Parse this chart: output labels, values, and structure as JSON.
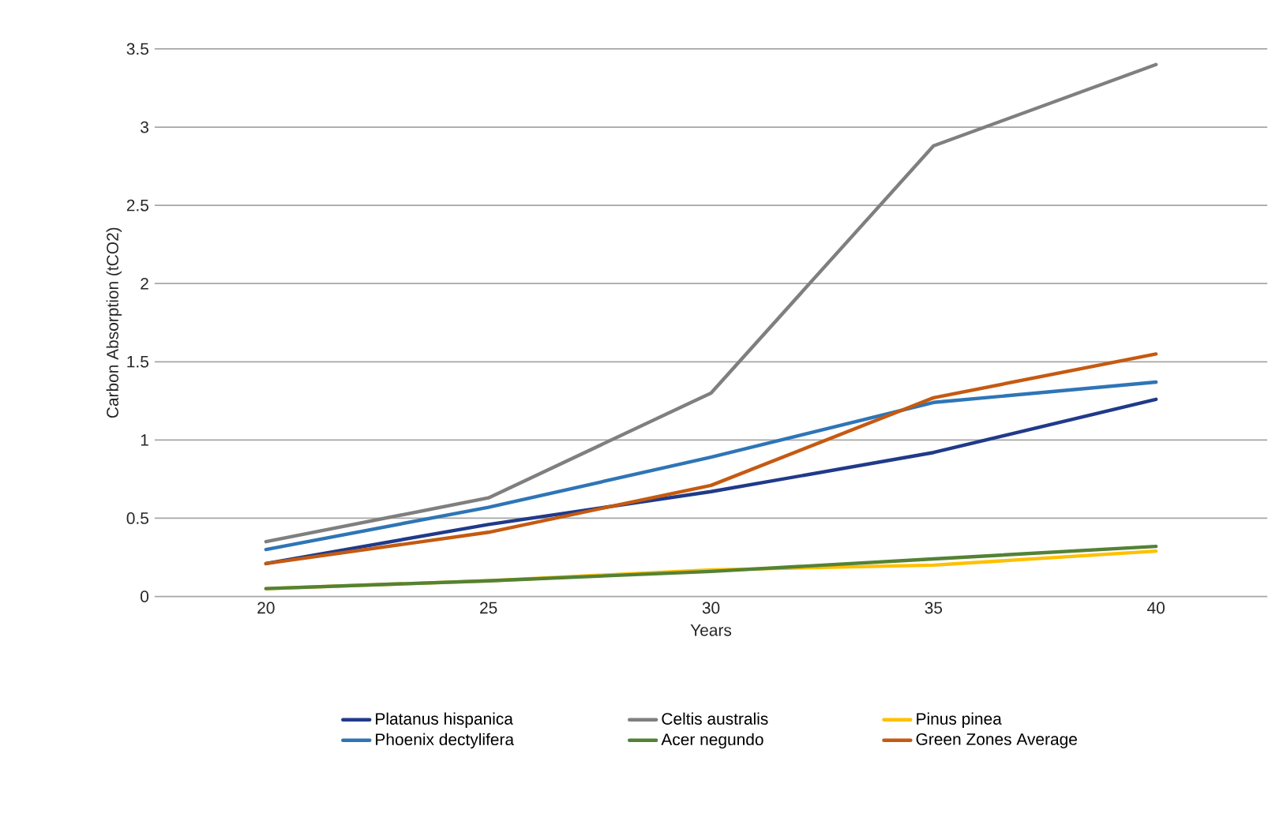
{
  "chart_data": {
    "type": "line",
    "xlabel": "Years",
    "ylabel": "Carbon Absorption (tCO2)",
    "categories": [
      "20",
      "25",
      "30",
      "35",
      "40"
    ],
    "ylim": [
      0,
      3.5
    ],
    "yticks": [
      0,
      0.5,
      1,
      1.5,
      2,
      2.5,
      3,
      3.5
    ],
    "grid": "y",
    "legend": "bottom",
    "marker": "none",
    "line_style": "solid",
    "series": [
      {
        "name": "Platanus hispanica",
        "color": "#203a8a",
        "values": [
          0.21,
          0.46,
          0.67,
          0.92,
          1.26
        ]
      },
      {
        "name": "Celtis australis",
        "color": "#7f7f7f",
        "values": [
          0.35,
          0.63,
          1.3,
          2.88,
          3.4
        ]
      },
      {
        "name": "Pinus pinea",
        "color": "#ffc000",
        "values": [
          0.05,
          0.1,
          0.17,
          0.2,
          0.29
        ]
      },
      {
        "name": "Phoenix dectylifera",
        "color": "#2e75b6",
        "values": [
          0.3,
          0.57,
          0.89,
          1.24,
          1.37
        ]
      },
      {
        "name": "Acer negundo",
        "color": "#548235",
        "values": [
          0.05,
          0.1,
          0.16,
          0.24,
          0.32
        ]
      },
      {
        "name": "Green Zones Average",
        "color": "#c55a11",
        "values": [
          0.21,
          0.41,
          0.71,
          1.27,
          1.55
        ]
      }
    ]
  }
}
